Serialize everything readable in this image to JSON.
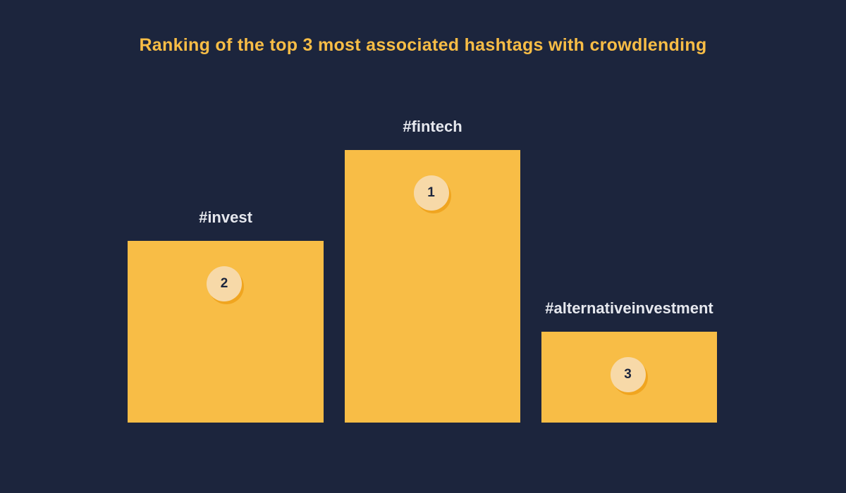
{
  "colors": {
    "background": "#1c253d",
    "accent": "#f8bd46",
    "label": "#e6e8ee",
    "medal": "#f7d9a8",
    "medal_shadow": "#f0a520"
  },
  "chart_data": {
    "type": "bar",
    "title": "Ranking of the top 3 most associated hashtags with crowdlending",
    "categories": [
      "#invest",
      "#fintech",
      "#alternativeinvestment"
    ],
    "ranks": [
      2,
      1,
      3
    ],
    "values": [
      2,
      3,
      1
    ]
  }
}
